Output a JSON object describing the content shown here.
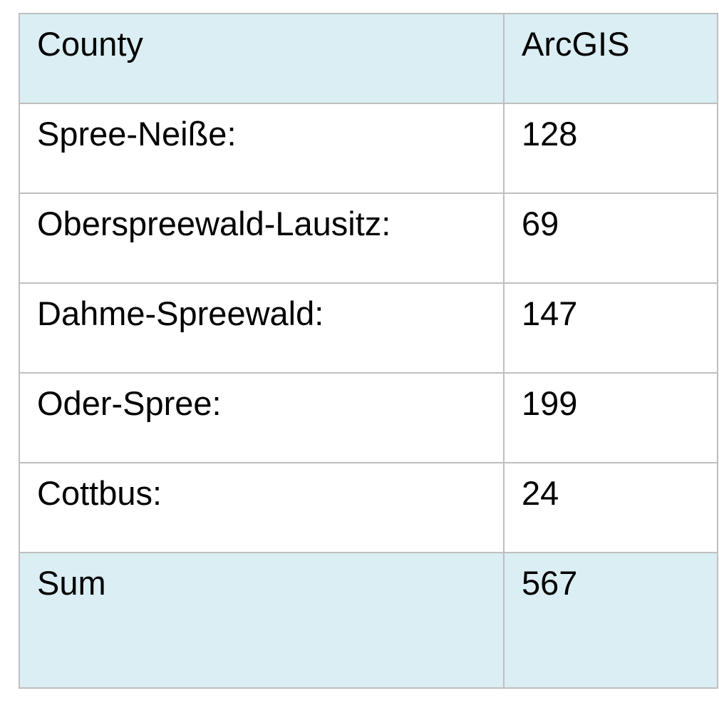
{
  "table": {
    "headers": [
      "County",
      "ArcGIS"
    ],
    "rows": [
      {
        "county": "Spree-Neiße:",
        "arcgis": "128"
      },
      {
        "county": "Oberspreewald-Lausitz:",
        "arcgis": "69"
      },
      {
        "county": "Dahme-Spreewald:",
        "arcgis": "147"
      },
      {
        "county": "Oder-Spree:",
        "arcgis": "199"
      },
      {
        "county": "Cottbus:",
        "arcgis": "24"
      }
    ],
    "total": {
      "label": "Sum",
      "value": "567"
    }
  },
  "colors": {
    "header_bg": "#daeef3",
    "border": "#bfbfbf"
  }
}
